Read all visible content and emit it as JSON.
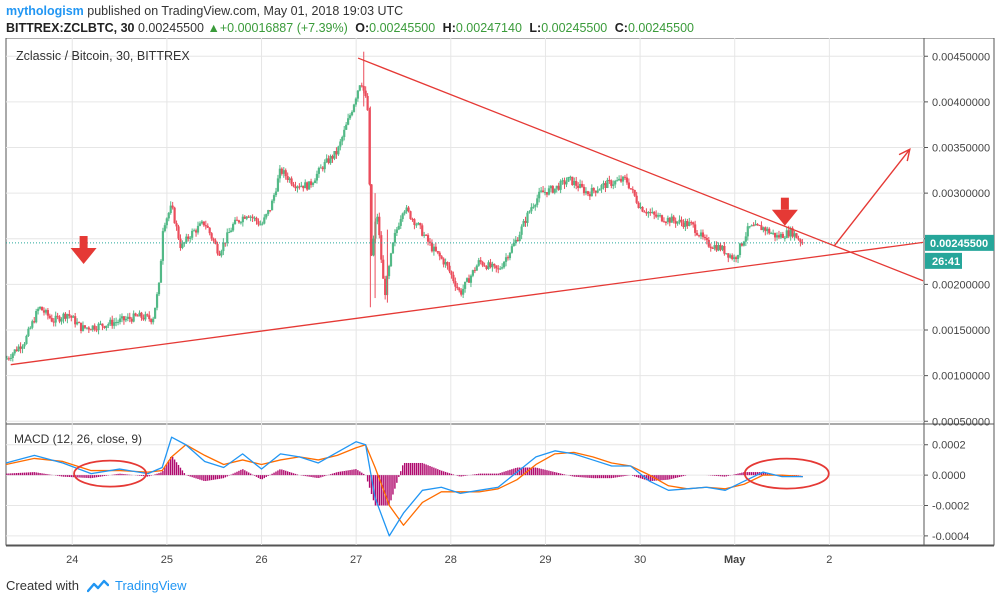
{
  "header": {
    "author": "mythologism",
    "published_text": "published on TradingView.com, May 01, 2018 19:03 UTC",
    "symbol": "BITTREX:ZCLBTC, 30",
    "last": "0.00245500",
    "change_arrow": "▲",
    "change": "+0.00016887 (+7.39%)",
    "o_label": "O:",
    "o_value": "0.00245500",
    "h_label": "H:",
    "h_value": "0.00247140",
    "l_label": "L:",
    "l_value": "0.00245500",
    "c_label": "C:",
    "c_value": "0.00245500"
  },
  "footer": {
    "created_with": "Created with",
    "brand": "TradingView"
  },
  "colors": {
    "up": "#53b987",
    "down": "#eb4d5c",
    "macd": "#2196f3",
    "signal": "#ff6d00",
    "hist": "#b00a6e",
    "annotation": "#e53935",
    "price_line": "#26a69a"
  },
  "chart_data": [
    {
      "type": "candlestick",
      "title": "Zclassic / Bitcoin, 30, BITTREX",
      "ylim": [
        0.00047,
        0.0047
      ],
      "yticks": [
        "0.00450000",
        "0.00400000",
        "0.00350000",
        "0.00300000",
        "0.00250000",
        "0.00200000",
        "0.00150000",
        "0.00100000",
        "0.00050000"
      ],
      "yticks_values": [
        0.0045,
        0.004,
        0.0035,
        0.003,
        0.0025,
        0.002,
        0.0015,
        0.001,
        0.0005
      ],
      "x_labels": [
        "24",
        "25",
        "26",
        "27",
        "28",
        "29",
        "30",
        "May",
        "2"
      ],
      "current_price_label": "0.00245500",
      "current_price": 0.002455,
      "countdown_label": "26:41",
      "close_path": [
        [
          23.3,
          0.00118
        ],
        [
          23.5,
          0.00138
        ],
        [
          23.65,
          0.00175
        ],
        [
          23.8,
          0.0016
        ],
        [
          23.95,
          0.00168
        ],
        [
          24.1,
          0.00152
        ],
        [
          24.3,
          0.00155
        ],
        [
          24.5,
          0.0016
        ],
        [
          24.7,
          0.00165
        ],
        [
          24.85,
          0.00162
        ],
        [
          24.92,
          0.002
        ],
        [
          24.96,
          0.00265
        ],
        [
          25.05,
          0.00285
        ],
        [
          25.15,
          0.0024
        ],
        [
          25.25,
          0.00255
        ],
        [
          25.4,
          0.00268
        ],
        [
          25.55,
          0.00235
        ],
        [
          25.7,
          0.00265
        ],
        [
          25.85,
          0.00278
        ],
        [
          26.0,
          0.00265
        ],
        [
          26.1,
          0.00285
        ],
        [
          26.2,
          0.00325
        ],
        [
          26.35,
          0.0031
        ],
        [
          26.5,
          0.00308
        ],
        [
          26.65,
          0.0033
        ],
        [
          26.8,
          0.00345
        ],
        [
          26.95,
          0.0039
        ],
        [
          27.05,
          0.00425
        ],
        [
          27.12,
          0.00395
        ],
        [
          27.16,
          0.0023
        ],
        [
          27.22,
          0.0028
        ],
        [
          27.3,
          0.00188
        ],
        [
          27.4,
          0.0025
        ],
        [
          27.5,
          0.00285
        ],
        [
          27.65,
          0.00265
        ],
        [
          27.8,
          0.0024
        ],
        [
          27.95,
          0.00222
        ],
        [
          28.1,
          0.0019
        ],
        [
          28.3,
          0.00225
        ],
        [
          28.5,
          0.00215
        ],
        [
          28.7,
          0.0025
        ],
        [
          28.85,
          0.00285
        ],
        [
          28.95,
          0.003
        ],
        [
          29.1,
          0.00305
        ],
        [
          29.25,
          0.00315
        ],
        [
          29.45,
          0.003
        ],
        [
          29.65,
          0.0031
        ],
        [
          29.85,
          0.00315
        ],
        [
          30.0,
          0.00285
        ],
        [
          30.15,
          0.00275
        ],
        [
          30.35,
          0.0027
        ],
        [
          30.55,
          0.00265
        ],
        [
          30.7,
          0.00245
        ],
        [
          30.85,
          0.0024
        ],
        [
          31.0,
          0.00228
        ],
        [
          31.15,
          0.00262
        ],
        [
          31.3,
          0.00262
        ],
        [
          31.45,
          0.00252
        ],
        [
          31.6,
          0.00258
        ],
        [
          31.72,
          0.002455
        ]
      ],
      "series": [
        {
          "name": "trendline_upper",
          "points": [
            [
              27.02,
              0.00448
            ],
            [
              32.99,
              0.00204
            ]
          ]
        },
        {
          "name": "trendline_lower",
          "points": [
            [
              23.35,
              0.00112
            ],
            [
              32.99,
              0.00246
            ]
          ]
        },
        {
          "name": "arrow_up",
          "points": [
            [
              32.05,
              0.00242
            ],
            [
              32.85,
              0.00348
            ]
          ]
        },
        {
          "name": "arrow_down_left",
          "points": [
            [
              24.12,
              0.00253
            ]
          ]
        },
        {
          "name": "arrow_down_right",
          "points": [
            [
              31.53,
              0.00295
            ]
          ]
        }
      ]
    },
    {
      "type": "line",
      "title": "MACD (12, 26, close, 9)",
      "ylim": [
        -0.00046,
        0.00033
      ],
      "yticks": [
        "0.0002",
        "0.0000",
        "-0.0002",
        "-0.0004"
      ],
      "yticks_values": [
        0.0002,
        0.0,
        -0.0002,
        -0.0004
      ],
      "series": [
        {
          "name": "MACD",
          "points": [
            [
              23.3,
              8e-05
            ],
            [
              23.6,
              0.00013
            ],
            [
              23.9,
              8e-05
            ],
            [
              24.2,
              1e-05
            ],
            [
              24.5,
              4e-05
            ],
            [
              24.8,
              1e-05
            ],
            [
              24.95,
              5e-05
            ],
            [
              25.05,
              0.00025
            ],
            [
              25.2,
              0.0002
            ],
            [
              25.4,
              9e-05
            ],
            [
              25.6,
              5e-05
            ],
            [
              25.8,
              0.00014
            ],
            [
              26.0,
              4e-05
            ],
            [
              26.2,
              0.00014
            ],
            [
              26.4,
              0.00012
            ],
            [
              26.6,
              8e-05
            ],
            [
              26.8,
              0.00015
            ],
            [
              27.0,
              0.00022
            ],
            [
              27.1,
              0.0002
            ],
            [
              27.2,
              -0.00015
            ],
            [
              27.35,
              -0.0004
            ],
            [
              27.5,
              -0.00025
            ],
            [
              27.7,
              -0.0001
            ],
            [
              27.9,
              -8e-05
            ],
            [
              28.1,
              -0.00012
            ],
            [
              28.3,
              -0.0001
            ],
            [
              28.5,
              -8e-05
            ],
            [
              28.7,
              2e-05
            ],
            [
              28.9,
              0.00012
            ],
            [
              29.1,
              0.00016
            ],
            [
              29.3,
              0.00014
            ],
            [
              29.5,
              0.0001
            ],
            [
              29.7,
              6e-05
            ],
            [
              29.9,
              6e-05
            ],
            [
              30.1,
              -4e-05
            ],
            [
              30.3,
              -0.0001
            ],
            [
              30.5,
              -9e-05
            ],
            [
              30.7,
              -8e-05
            ],
            [
              30.9,
              -0.0001
            ],
            [
              31.1,
              -4e-05
            ],
            [
              31.3,
              2e-05
            ],
            [
              31.5,
              -1e-05
            ],
            [
              31.72,
              -1e-05
            ]
          ]
        },
        {
          "name": "Signal",
          "points": [
            [
              23.3,
              7e-05
            ],
            [
              23.6,
              0.00011
            ],
            [
              23.9,
              9e-05
            ],
            [
              24.2,
              3e-05
            ],
            [
              24.5,
              3e-05
            ],
            [
              24.8,
              2e-05
            ],
            [
              24.95,
              3e-05
            ],
            [
              25.05,
              0.00012
            ],
            [
              25.2,
              0.0002
            ],
            [
              25.4,
              0.00013
            ],
            [
              25.6,
              7e-05
            ],
            [
              25.8,
              0.0001
            ],
            [
              26.0,
              7e-05
            ],
            [
              26.2,
              0.0001
            ],
            [
              26.4,
              0.00012
            ],
            [
              26.6,
              0.0001
            ],
            [
              26.8,
              0.00013
            ],
            [
              27.0,
              0.00018
            ],
            [
              27.1,
              0.0002
            ],
            [
              27.2,
              5e-05
            ],
            [
              27.35,
              -0.0002
            ],
            [
              27.5,
              -0.00033
            ],
            [
              27.7,
              -0.00018
            ],
            [
              27.9,
              -0.00011
            ],
            [
              28.1,
              -0.00011
            ],
            [
              28.3,
              -0.00011
            ],
            [
              28.5,
              -9e-05
            ],
            [
              28.7,
              -3e-05
            ],
            [
              28.9,
              7e-05
            ],
            [
              29.1,
              0.00014
            ],
            [
              29.3,
              0.00015
            ],
            [
              29.5,
              0.00012
            ],
            [
              29.7,
              8e-05
            ],
            [
              29.9,
              6e-05
            ],
            [
              30.1,
              0.0
            ],
            [
              30.3,
              -7e-05
            ],
            [
              30.5,
              -9e-05
            ],
            [
              30.7,
              -8e-05
            ],
            [
              30.9,
              -9e-05
            ],
            [
              31.1,
              -6e-05
            ],
            [
              31.3,
              0.0
            ],
            [
              31.5,
              0.0
            ],
            [
              31.72,
              -1e-05
            ]
          ]
        }
      ]
    }
  ]
}
